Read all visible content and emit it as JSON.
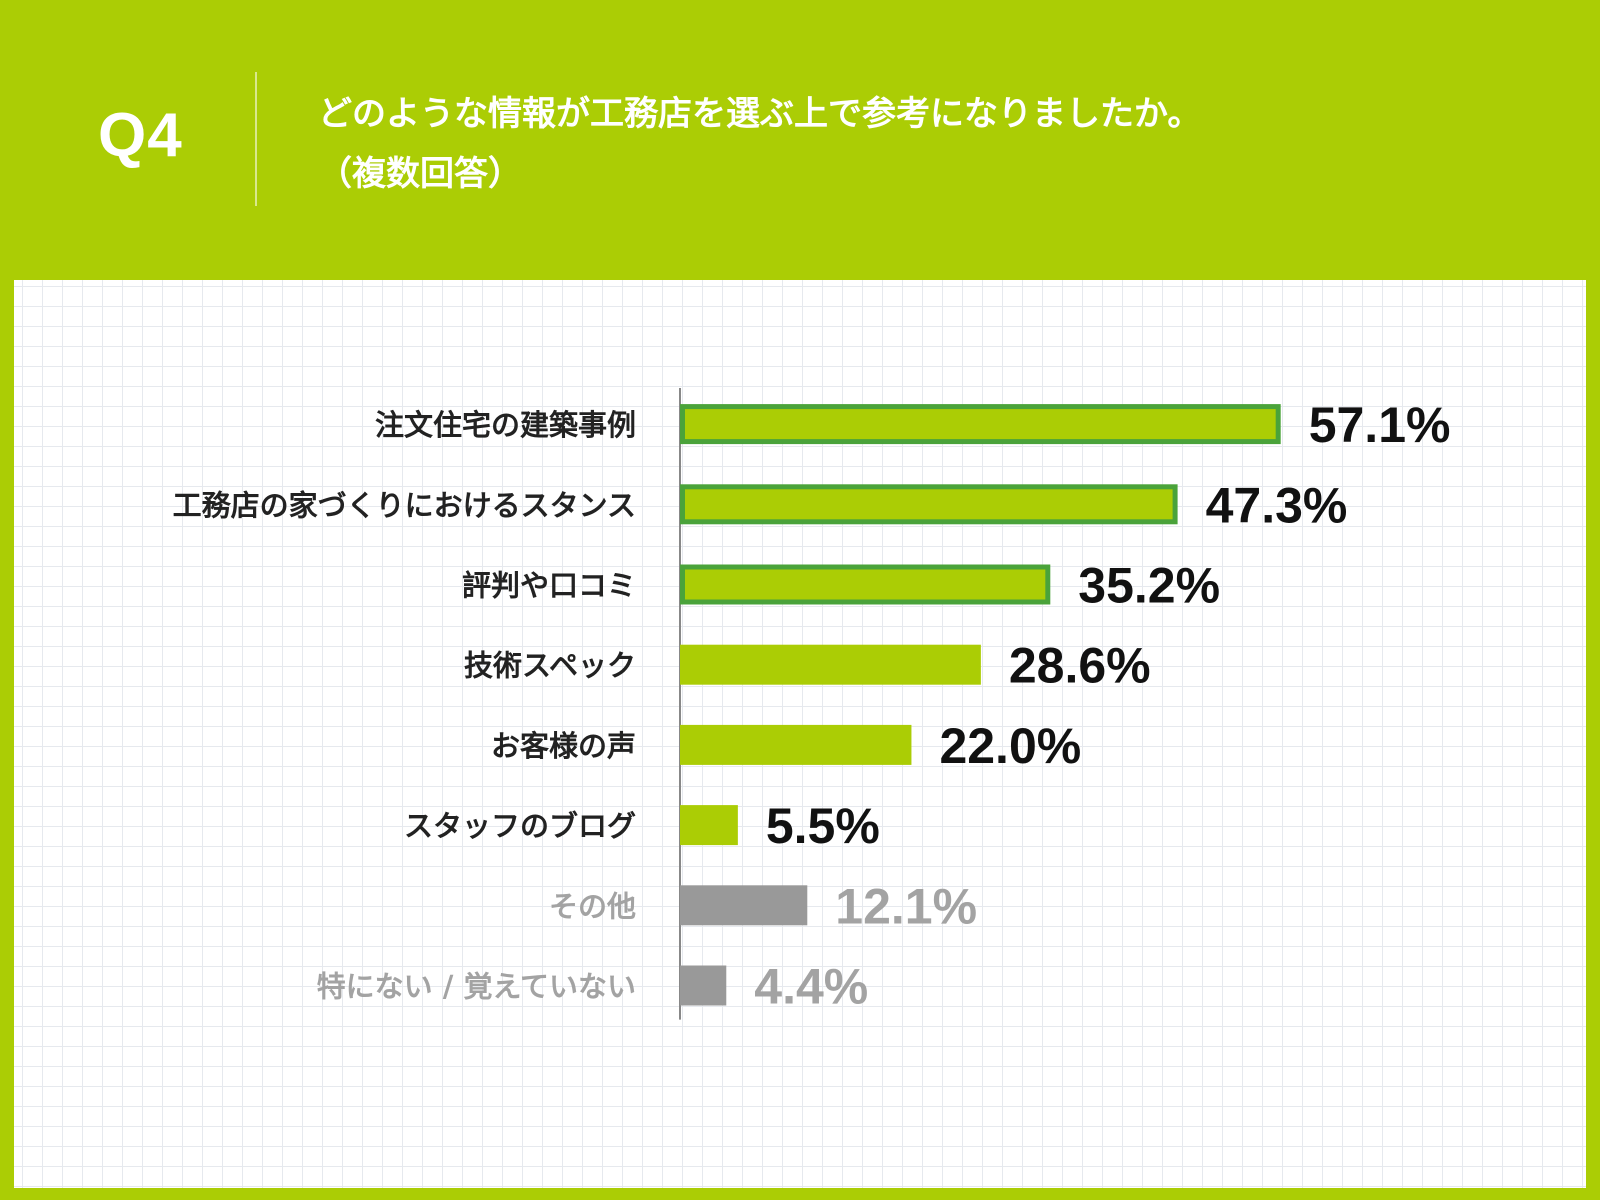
{
  "question": {
    "label": "Q4",
    "text_line1": "どのような情報が工務店を選ぶ上で参考になりましたか。",
    "text_line2": "（複数回答）"
  },
  "colors": {
    "background": "#abcd05",
    "bar_primary": "#abcd05",
    "bar_highlight_border": "#4aa33a",
    "bar_other": "#999999",
    "label_primary": "#222222",
    "label_other": "#a3a3a3"
  },
  "chart_data": {
    "type": "bar",
    "orientation": "horizontal",
    "unit": "%",
    "xlim": [
      0,
      100
    ],
    "categories": [
      "注文住宅の建築事例",
      "工務店の家づくりにおけるスタンス",
      "評判や口コミ",
      "技術スペック",
      "お客様の声",
      "スタッフのブログ",
      "その他",
      "特にない / 覚えていない"
    ],
    "values": [
      57.1,
      47.3,
      35.2,
      28.6,
      22.0,
      5.5,
      12.1,
      4.4
    ],
    "value_labels": [
      "57.1%",
      "47.3%",
      "35.2%",
      "28.6%",
      "22.0%",
      "5.5%",
      "12.1%",
      "4.4%"
    ],
    "highlighted": [
      true,
      true,
      true,
      false,
      false,
      false,
      false,
      false
    ],
    "group": [
      "main",
      "main",
      "main",
      "main",
      "main",
      "main",
      "other",
      "other"
    ],
    "grid": true
  }
}
